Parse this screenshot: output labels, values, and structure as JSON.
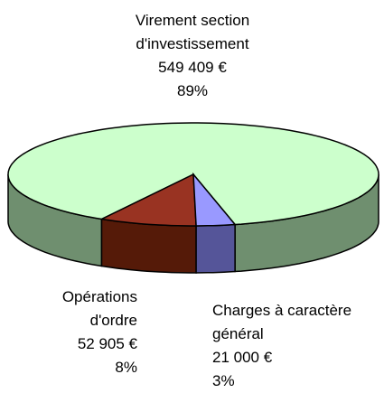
{
  "chart_data": {
    "type": "pie3d",
    "categories": [
      "Virement section d'investissement",
      "Opérations d'ordre",
      "Charges à caractère général"
    ],
    "values": [
      549409,
      52905,
      21000
    ],
    "value_labels": [
      "549 409 €",
      "52 905 €",
      "21 000 €"
    ],
    "percents": [
      89,
      8,
      3
    ],
    "percent_labels": [
      "89%",
      "8%",
      "3%"
    ],
    "colors": [
      "#ccffcc",
      "#993322",
      "#9999ff"
    ],
    "side_colors": [
      "#6f8f6f",
      "#551a08",
      "#555599"
    ]
  }
}
